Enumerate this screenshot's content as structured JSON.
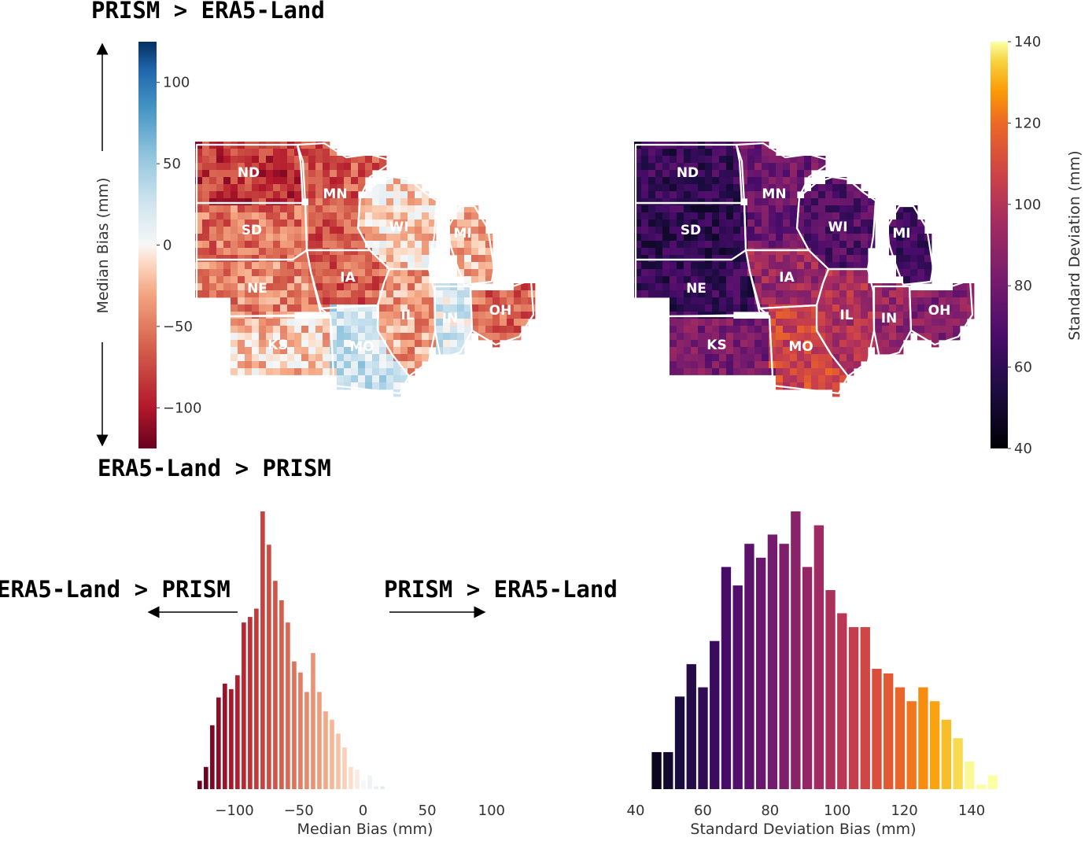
{
  "annotations": {
    "top": "PRISM > ERA5-Land",
    "bottom": "ERA5-Land > PRISM",
    "hist_left": "ERA5-Land > PRISM",
    "hist_right": "PRISM > ERA5-Land"
  },
  "colors": {
    "bias_low": "#67001f",
    "bias_mid": "#f7f7f7",
    "bias_high": "#053061",
    "state_border": "#ffffff"
  },
  "states": [
    "ND",
    "MN",
    "SD",
    "WI",
    "MI",
    "NE",
    "IA",
    "IL",
    "IN",
    "OH",
    "KS",
    "MO"
  ],
  "chart_data": [
    {
      "type": "heatmap",
      "name": "median-bias-map",
      "colormap": "RdBu",
      "colorbar": {
        "label": "Median Bias (mm)",
        "ticks": [
          "100",
          "50",
          "0",
          "−50",
          "−100"
        ],
        "range": [
          -125,
          125
        ]
      },
      "regions": [
        {
          "state": "ND",
          "value": -85
        },
        {
          "state": "MN",
          "value": -70
        },
        {
          "state": "SD",
          "value": -55
        },
        {
          "state": "WI",
          "value": -15
        },
        {
          "state": "MI",
          "value": -30
        },
        {
          "state": "NE",
          "value": -45
        },
        {
          "state": "IA",
          "value": -65
        },
        {
          "state": "IL",
          "value": -35
        },
        {
          "state": "IN",
          "value": 20
        },
        {
          "state": "OH",
          "value": -60
        },
        {
          "state": "KS",
          "value": -20
        },
        {
          "state": "MO",
          "value": 30
        }
      ]
    },
    {
      "type": "heatmap",
      "name": "std-dev-map",
      "colormap": "inferno",
      "colorbar": {
        "label": "Standard Deviation (mm)",
        "ticks": [
          "140",
          "120",
          "100",
          "80",
          "60",
          "40"
        ],
        "range": [
          40,
          140
        ]
      },
      "regions": [
        {
          "state": "ND",
          "value": 62
        },
        {
          "state": "MN",
          "value": 78
        },
        {
          "state": "SD",
          "value": 60
        },
        {
          "state": "WI",
          "value": 70
        },
        {
          "state": "MI",
          "value": 65
        },
        {
          "state": "NE",
          "value": 62
        },
        {
          "state": "IA",
          "value": 92
        },
        {
          "state": "IL",
          "value": 98
        },
        {
          "state": "IN",
          "value": 90
        },
        {
          "state": "OH",
          "value": 85
        },
        {
          "state": "KS",
          "value": 82
        },
        {
          "state": "MO",
          "value": 108
        }
      ]
    },
    {
      "type": "bar",
      "name": "median-bias-histogram",
      "xlabel": "Median Bias (mm)",
      "xticks": [
        "−100",
        "−50",
        "0",
        "50",
        "100"
      ],
      "xlim": [
        -130,
        105
      ],
      "bin_width": 4.9,
      "bin_start": -129.5,
      "values": [
        3,
        8,
        23,
        33,
        38,
        36,
        41,
        60,
        62,
        65,
        100,
        88,
        75,
        68,
        60,
        46,
        42,
        35,
        49,
        35,
        28,
        25,
        20,
        15,
        8,
        7,
        3,
        5,
        1,
        1
      ]
    },
    {
      "type": "bar",
      "name": "std-dev-histogram",
      "xlabel": "Standard Deviation Bias (mm)",
      "xticks": [
        "40",
        "60",
        "80",
        "100",
        "120",
        "140"
      ],
      "xlim": [
        40,
        140
      ],
      "bin_width": 3.45,
      "bin_start": 44.5,
      "values": [
        8,
        8,
        20,
        27,
        22,
        32,
        48,
        44,
        53,
        50,
        55,
        53,
        60,
        48,
        57,
        43,
        38,
        35,
        35,
        26,
        25,
        22,
        19,
        22,
        19,
        15,
        11,
        6,
        1,
        3
      ]
    }
  ]
}
